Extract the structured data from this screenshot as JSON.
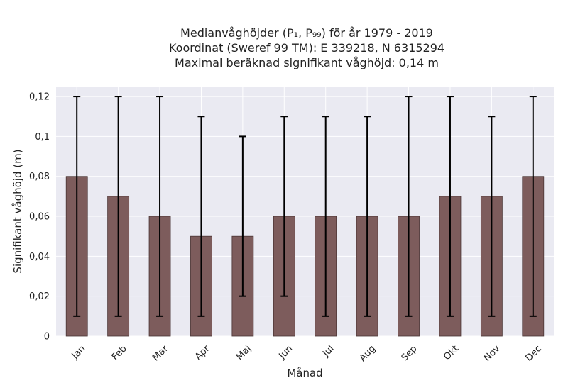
{
  "chart_data": {
    "type": "bar",
    "title_lines": [
      "Medianvåghöjder (P₁, P₉₉) för år 1979 - 2019",
      "Koordinat (Sweref 99 TM): E 339218, N 6315294",
      "Maximal beräknad signifikant våghöjd: 0,14 m"
    ],
    "xlabel": "Månad",
    "ylabel": "Signifikant våghöjd (m)",
    "ylim": [
      0,
      0.125
    ],
    "yticks": [
      0,
      0.02,
      0.04,
      0.06,
      0.08,
      0.1,
      0.12
    ],
    "ytick_labels": [
      "0",
      "0,02",
      "0,04",
      "0,06",
      "0,08",
      "0,1",
      "0,12"
    ],
    "grid": true,
    "categories": [
      "Jan",
      "Feb",
      "Mar",
      "Apr",
      "Maj",
      "Jun",
      "Jul",
      "Aug",
      "Sep",
      "Okt",
      "Nov",
      "Dec"
    ],
    "values": [
      0.08,
      0.07,
      0.06,
      0.05,
      0.05,
      0.06,
      0.06,
      0.06,
      0.06,
      0.07,
      0.07,
      0.08
    ],
    "p1": [
      0.01,
      0.01,
      0.01,
      0.01,
      0.02,
      0.02,
      0.01,
      0.01,
      0.01,
      0.01,
      0.01,
      0.01
    ],
    "p99": [
      0.12,
      0.12,
      0.12,
      0.11,
      0.1,
      0.11,
      0.11,
      0.11,
      0.12,
      0.12,
      0.11,
      0.12
    ],
    "colors": {
      "bar": "#7d5c5c",
      "bar_edge": "#4a3434",
      "error": "#000000",
      "plot_bg": "#eaeaf2",
      "grid": "#ffffff"
    }
  }
}
